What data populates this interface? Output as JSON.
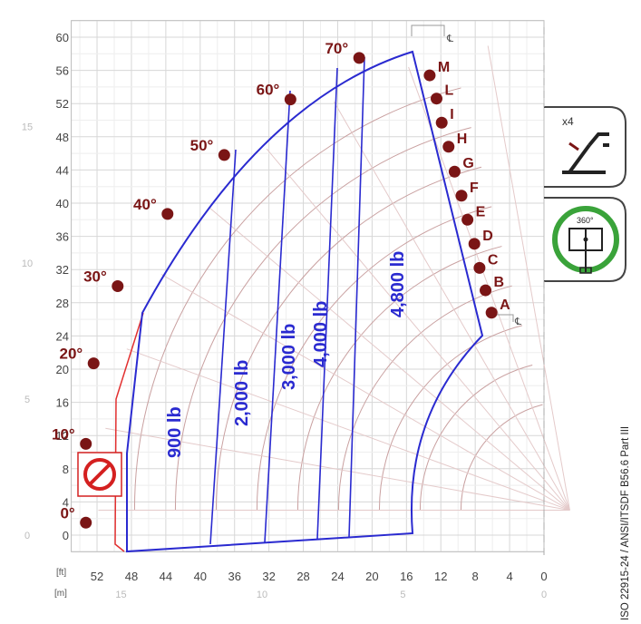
{
  "chart_data": {
    "type": "load-chart",
    "x_unit_ft": "[ft]",
    "x_unit_m": "[m]",
    "x_ticks_ft": [
      52,
      48,
      44,
      40,
      36,
      32,
      28,
      24,
      20,
      16,
      12,
      8,
      4,
      0
    ],
    "y_ticks_ft": [
      60,
      56,
      52,
      48,
      44,
      40,
      36,
      32,
      28,
      24,
      20,
      16,
      12,
      8,
      4,
      0
    ],
    "x_ticks_m": [
      "15",
      "10",
      "5",
      "0"
    ],
    "y_ticks_m": [
      "15",
      "10",
      "5",
      "0"
    ],
    "angles": [
      {
        "label": "70°",
        "x": 21.5,
        "y": 57.5
      },
      {
        "label": "60°",
        "x": 29.5,
        "y": 52.5
      },
      {
        "label": "50°",
        "x": 37.2,
        "y": 45.8
      },
      {
        "label": "40°",
        "x": 43.8,
        "y": 38.7
      },
      {
        "label": "30°",
        "x": 49.6,
        "y": 30.0
      },
      {
        "label": "20°",
        "x": 52.4,
        "y": 20.7
      },
      {
        "label": "10°",
        "x": 53.3,
        "y": 11.0
      },
      {
        "label": "0°",
        "x": 53.3,
        "y": 1.5
      }
    ],
    "extension_letters": [
      {
        "label": "M",
        "x": 13.3,
        "y": 55.4
      },
      {
        "label": "L",
        "x": 12.5,
        "y": 52.6
      },
      {
        "label": "I",
        "x": 11.9,
        "y": 49.7
      },
      {
        "label": "H",
        "x": 11.1,
        "y": 46.8
      },
      {
        "label": "G",
        "x": 10.4,
        "y": 43.8
      },
      {
        "label": "F",
        "x": 9.6,
        "y": 40.9
      },
      {
        "label": "E",
        "x": 8.9,
        "y": 38.0
      },
      {
        "label": "D",
        "x": 8.1,
        "y": 35.1
      },
      {
        "label": "C",
        "x": 7.5,
        "y": 32.2
      },
      {
        "label": "B",
        "x": 6.8,
        "y": 29.5
      },
      {
        "label": "A",
        "x": 6.1,
        "y": 26.8
      }
    ],
    "capacity_zones": [
      {
        "label": "900 lb"
      },
      {
        "label": "2,000 lb"
      },
      {
        "label": "3,000 lb"
      },
      {
        "label": "4,000 lb"
      },
      {
        "label": "4,800 lb"
      }
    ],
    "grid": true,
    "colors": {
      "envelope": "#2a2ad0",
      "markers": "#7a1515",
      "grid": "#c9a0a0",
      "no_zone": "#d42020",
      "stabilizer_ring": "#3aa33a"
    }
  },
  "side_icons": {
    "multiplier": "x4",
    "rotation": "360°"
  },
  "standards_text": "ISO 22915-24  /  ANSI/ITSDF B56.6 Part III"
}
